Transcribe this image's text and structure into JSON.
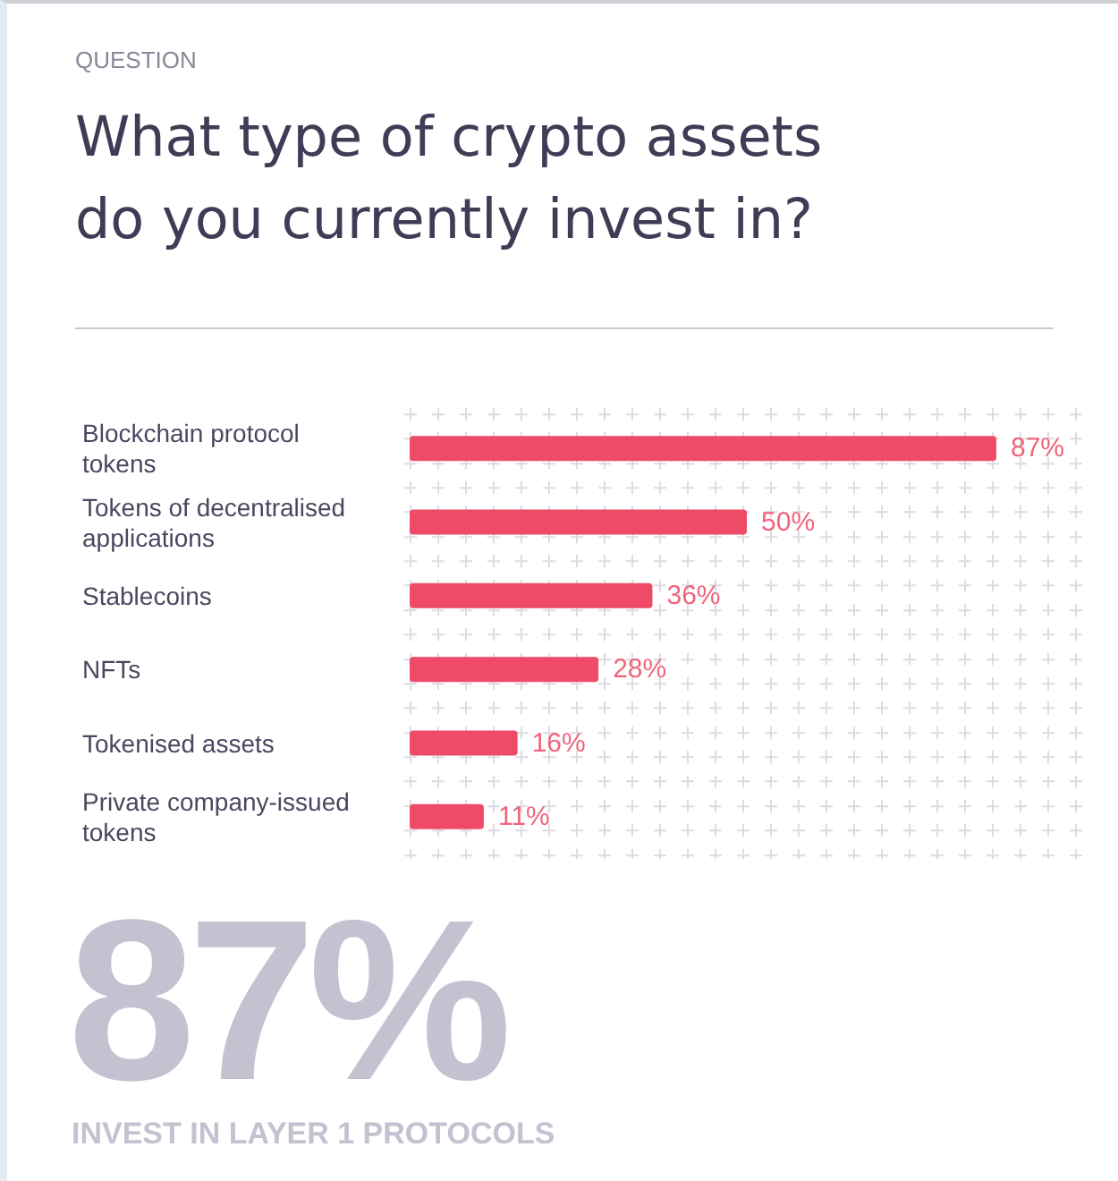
{
  "chart_data": {
    "type": "bar",
    "orientation": "horizontal",
    "subtitle": "QUESTION",
    "title": "What type of crypto assets\ndo you currently invest in?",
    "categories": [
      "Blockchain protocol\ntokens",
      "Tokens of decentralised\napplications",
      "Stablecoins",
      "NFTs",
      "Tokenised assets",
      "Private company-issued\ntokens"
    ],
    "values": [
      87,
      50,
      36,
      28,
      16,
      11
    ],
    "value_labels": [
      "87%",
      "50%",
      "36%",
      "28%",
      "16%",
      "11%"
    ],
    "color": "#ef4b68",
    "annotations": [
      "87%",
      "INVEST IN LAYER 1 PROTOCOLS"
    ]
  }
}
